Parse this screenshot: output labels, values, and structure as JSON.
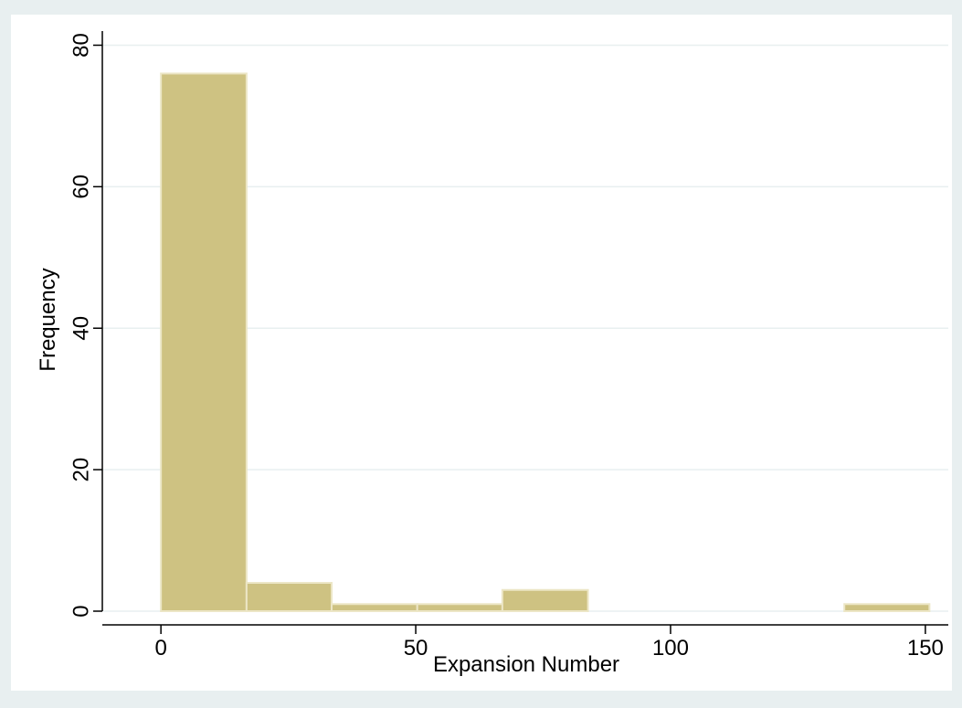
{
  "chart_data": {
    "type": "bar",
    "title": "",
    "xlabel": "Expansion Number",
    "ylabel": "Frequency",
    "xlim": [
      -11.5,
      154.5
    ],
    "ylim": [
      0,
      82
    ],
    "xticks": [
      0,
      50,
      100,
      150
    ],
    "xtick_labels": [
      "0",
      "50",
      "100",
      "150"
    ],
    "yticks": [
      0,
      20,
      40,
      60,
      80
    ],
    "ytick_labels": [
      "0",
      "20",
      "40",
      "60",
      "80"
    ],
    "grid": true,
    "bins": [
      {
        "x0": 0,
        "x1": 16.8,
        "value": 76
      },
      {
        "x0": 16.8,
        "x1": 33.5,
        "value": 4
      },
      {
        "x0": 33.5,
        "x1": 50.3,
        "value": 1
      },
      {
        "x0": 50.3,
        "x1": 67.0,
        "value": 1
      },
      {
        "x0": 67.0,
        "x1": 83.8,
        "value": 3
      },
      {
        "x0": 83.8,
        "x1": 100.6,
        "value": 0
      },
      {
        "x0": 100.6,
        "x1": 117.3,
        "value": 0
      },
      {
        "x0": 117.3,
        "x1": 134.1,
        "value": 0
      },
      {
        "x0": 134.1,
        "x1": 150.8,
        "value": 1
      }
    ],
    "colors": {
      "bar_fill": "#cec282",
      "bar_stroke": "#ece6c6",
      "grid": "#e8eff0",
      "plot_background": "#ffffff",
      "outer_background": "#e8eff0"
    }
  }
}
